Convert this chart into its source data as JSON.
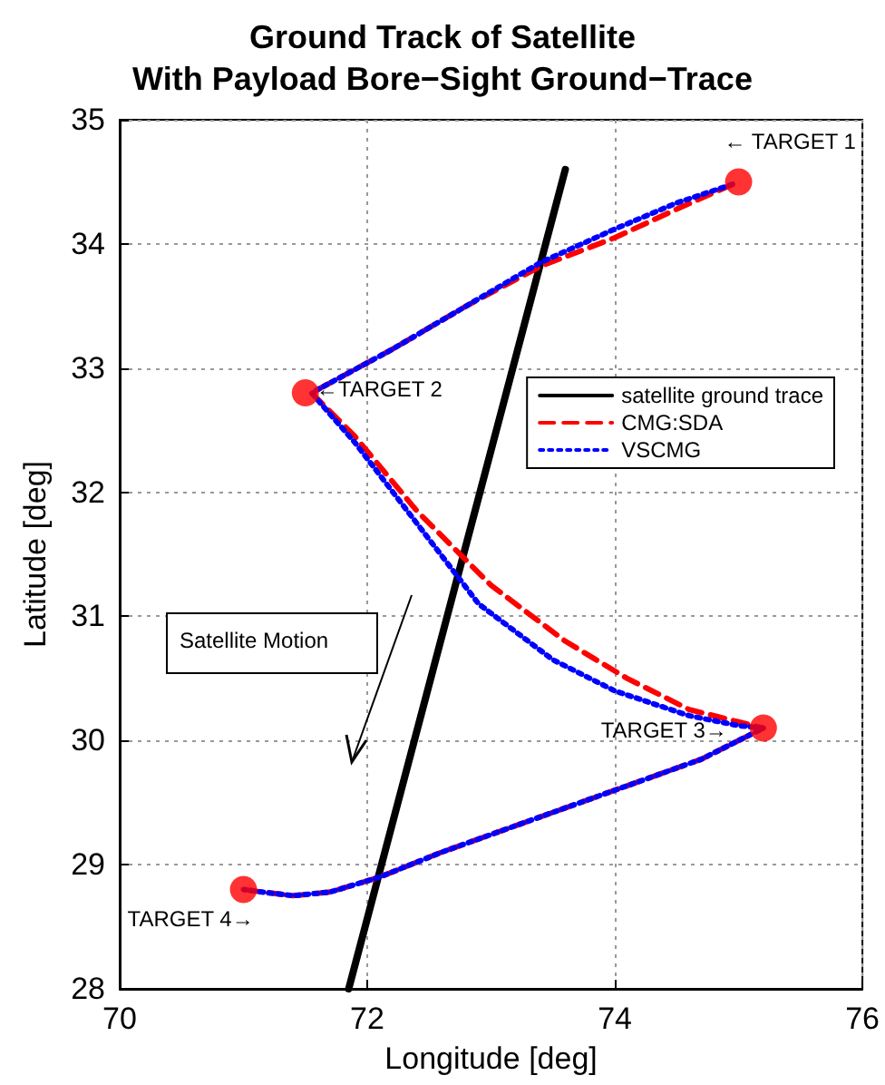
{
  "chart_data": {
    "type": "line",
    "title": "Ground Track of Satellite\nWith Payload Bore−Sight Ground−Trace",
    "xlabel": "Longitude [deg]",
    "ylabel": "Latitude [deg]",
    "xlim": [
      70,
      76
    ],
    "xticks": [
      70,
      72,
      74,
      76
    ],
    "ylim": [
      28,
      35
    ],
    "yticks": [
      28,
      29,
      30,
      31,
      32,
      33,
      34,
      35
    ],
    "grid": true,
    "legend": "top right",
    "series": [
      {
        "name": "satellite ground trace",
        "type": "line",
        "color": "#000000",
        "line_style": "solid",
        "marker": "none",
        "x": [
          71.85,
          73.6
        ],
        "values": [
          28,
          34.6
        ]
      },
      {
        "name": "CMG:SDA",
        "type": "line",
        "color": "#ff0000",
        "line_style": "dashed",
        "marker": "none",
        "x": [
          74.95,
          74.5,
          74.0,
          73.4,
          72.8,
          72.2,
          71.55,
          71.9,
          72.4,
          73.0,
          73.6,
          74.1,
          74.6,
          75.0,
          75.2,
          74.7,
          74.0,
          73.3,
          72.6,
          72.1,
          71.7,
          71.4,
          71.15,
          71.0
        ],
        "values": [
          34.48,
          34.28,
          34.05,
          33.82,
          33.5,
          33.15,
          32.8,
          32.45,
          31.85,
          31.25,
          30.8,
          30.5,
          30.25,
          30.15,
          30.1,
          29.85,
          29.6,
          29.35,
          29.1,
          28.9,
          28.78,
          28.75,
          28.78,
          28.8
        ]
      },
      {
        "name": "VSCMG",
        "type": "line",
        "color": "#0000ff",
        "line_style": "dotted",
        "marker": "none",
        "x": [
          74.95,
          74.5,
          74.0,
          73.4,
          72.8,
          72.2,
          71.55,
          71.9,
          72.4,
          72.9,
          73.5,
          74.0,
          74.6,
          75.0,
          75.2,
          74.7,
          74.0,
          73.3,
          72.6,
          72.1,
          71.7,
          71.4,
          71.15,
          71.0
        ],
        "values": [
          34.48,
          34.33,
          34.12,
          33.85,
          33.5,
          33.15,
          32.8,
          32.4,
          31.75,
          31.1,
          30.65,
          30.4,
          30.2,
          30.12,
          30.1,
          29.85,
          29.6,
          29.35,
          29.1,
          28.9,
          28.78,
          28.75,
          28.78,
          28.8
        ]
      },
      {
        "type": "scatter",
        "color": "#ff0000",
        "marker": "circle",
        "x": [
          75,
          71.5,
          75.2,
          71
        ],
        "values": [
          34.5,
          32.8,
          30.1,
          28.8
        ]
      }
    ],
    "annotations": [
      {
        "text": "← TARGET 1",
        "x": 75,
        "y": 34.5
      },
      {
        "text": "←TARGET 2",
        "x": 71.5,
        "y": 32.8
      },
      {
        "text": "TARGET 3→",
        "x": 75.2,
        "y": 30.1
      },
      {
        "text": "TARGET 4→",
        "x": 71,
        "y": 28.8
      },
      "Satellite Motion"
    ]
  }
}
